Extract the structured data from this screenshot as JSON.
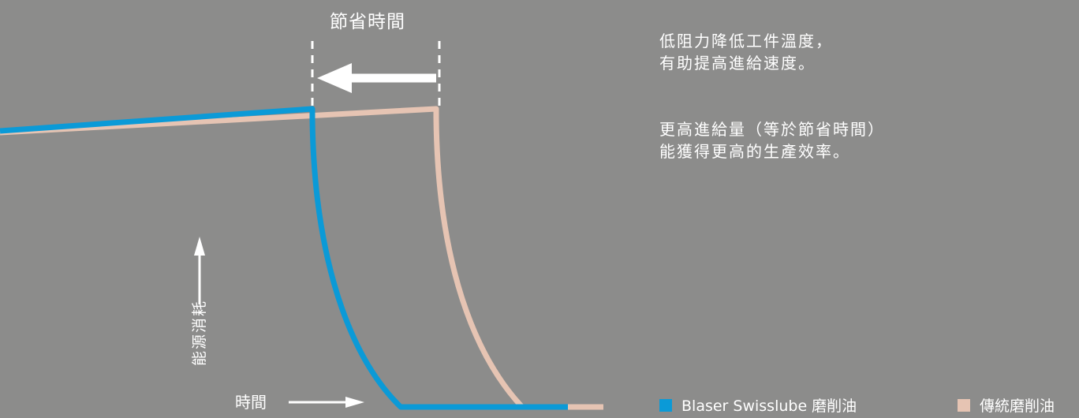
{
  "header": {
    "saving_label": "節省時間"
  },
  "description": {
    "line1": "低阻力降低工件溫度，",
    "line2": "有助提高進給速度。",
    "line3": "更高進給量（等於節省時間）",
    "line4": "能獲得更高的生產效率。"
  },
  "axes": {
    "x_label": "時間",
    "y_label": "能源消耗"
  },
  "legend": {
    "blaser": {
      "label": "Blaser Swisslube 磨削油",
      "color": "#0b9ad7"
    },
    "conventional": {
      "label": "傳統磨削油",
      "color": "#e6c4b3"
    }
  },
  "icons": {
    "saving_arrow": "left-arrow-icon",
    "x_axis_arrow": "right-arrow-icon",
    "y_axis_arrow": "up-arrow-icon"
  },
  "background_color": "#8c8c8b"
}
